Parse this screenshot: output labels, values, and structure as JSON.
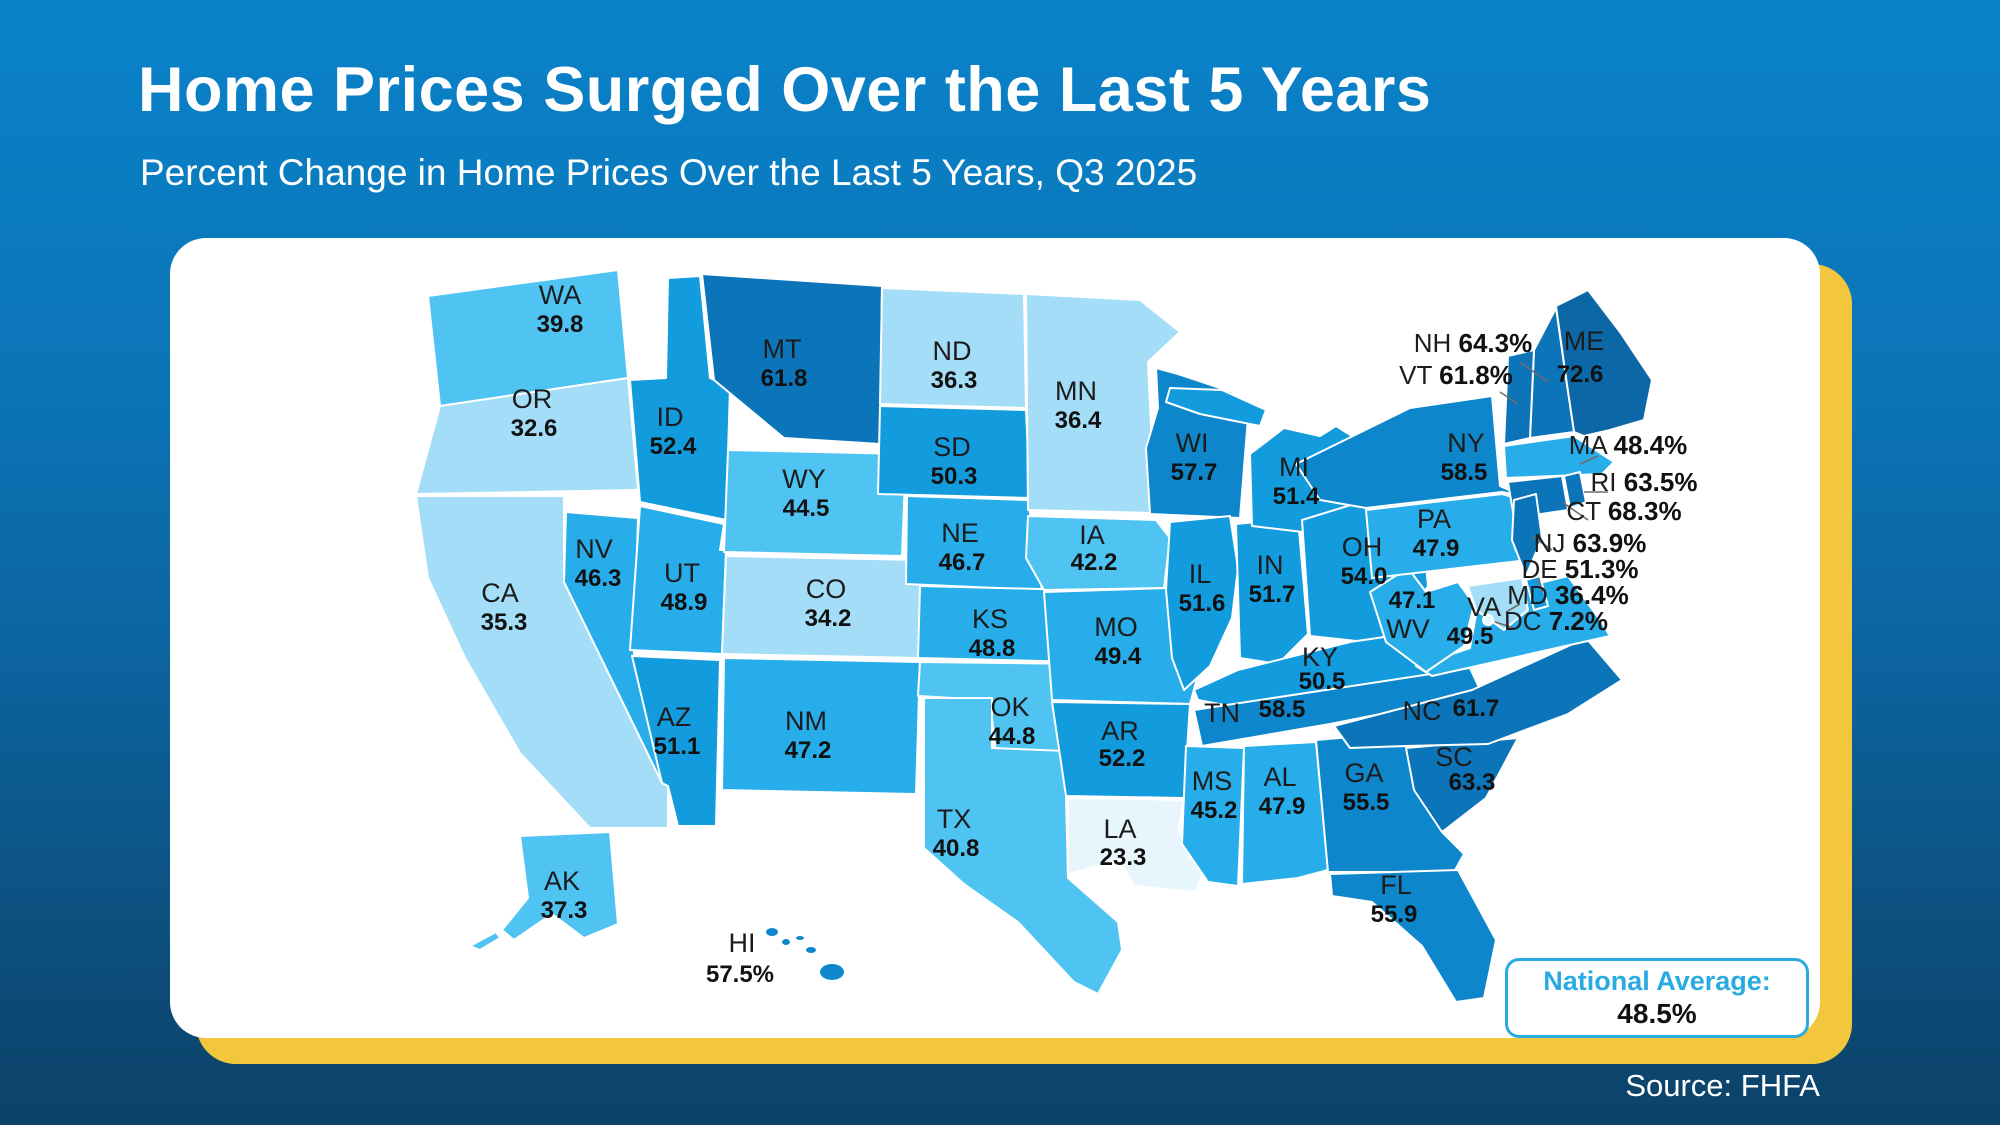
{
  "header": {
    "title": "Home Prices Surged Over the Last 5 Years",
    "subtitle": "Percent Change in Home Prices Over the Last 5 Years, Q3 2025"
  },
  "footer": {
    "source": "Source: FHFA"
  },
  "national_average": {
    "label": "National Average:",
    "value": "48.5%"
  },
  "colors": {
    "background_top": "#0a82c9",
    "background_bottom": "#0c4268",
    "accent_yellow": "#f2c63d",
    "callout_box_blue": "#29abe2",
    "scale_low_to_high": [
      "#e7f6fd",
      "#a3ddf8",
      "#4fc3f2",
      "#27ade9",
      "#129bdd",
      "#0e86cc",
      "#0c74b8",
      "#0b67a6"
    ]
  },
  "chart_data": {
    "type": "choropleth-map",
    "region": "United States",
    "title": "Home Prices Surged Over the Last 5 Years",
    "metric": "Percent change in home prices over the last 5 years, Q3 2025",
    "unit": "%",
    "national_average": 48.5,
    "source": "FHFA",
    "states": [
      {
        "code": "WA",
        "value": 39.8
      },
      {
        "code": "OR",
        "value": 32.6
      },
      {
        "code": "CA",
        "value": 35.3
      },
      {
        "code": "ID",
        "value": 52.4
      },
      {
        "code": "NV",
        "value": 46.3
      },
      {
        "code": "UT",
        "value": 48.9
      },
      {
        "code": "AZ",
        "value": 51.1
      },
      {
        "code": "MT",
        "value": 61.8
      },
      {
        "code": "WY",
        "value": 44.5
      },
      {
        "code": "CO",
        "value": 34.2
      },
      {
        "code": "NM",
        "value": 47.2
      },
      {
        "code": "ND",
        "value": 36.3
      },
      {
        "code": "SD",
        "value": 50.3
      },
      {
        "code": "NE",
        "value": 46.7
      },
      {
        "code": "KS",
        "value": 48.8
      },
      {
        "code": "OK",
        "value": 44.8
      },
      {
        "code": "TX",
        "value": 40.8
      },
      {
        "code": "MN",
        "value": 36.4
      },
      {
        "code": "IA",
        "value": 42.2
      },
      {
        "code": "MO",
        "value": 49.4
      },
      {
        "code": "AR",
        "value": 52.2
      },
      {
        "code": "LA",
        "value": 23.3
      },
      {
        "code": "WI",
        "value": 57.7
      },
      {
        "code": "IL",
        "value": 51.6
      },
      {
        "code": "IN",
        "value": 51.7
      },
      {
        "code": "MI",
        "value": 51.4
      },
      {
        "code": "OH",
        "value": 54.0
      },
      {
        "code": "KY",
        "value": 50.5
      },
      {
        "code": "TN",
        "value": 58.5
      },
      {
        "code": "MS",
        "value": 45.2
      },
      {
        "code": "AL",
        "value": 47.9
      },
      {
        "code": "GA",
        "value": 55.5
      },
      {
        "code": "FL",
        "value": 55.9
      },
      {
        "code": "SC",
        "value": 63.3
      },
      {
        "code": "NC",
        "value": 61.7
      },
      {
        "code": "VA",
        "value": 49.5
      },
      {
        "code": "WV",
        "value": 47.1
      },
      {
        "code": "PA",
        "value": 47.9
      },
      {
        "code": "NY",
        "value": 58.5
      },
      {
        "code": "ME",
        "value": 72.6
      },
      {
        "code": "AK",
        "value": 37.3
      },
      {
        "code": "HI",
        "value": 57.5,
        "pct": true
      },
      {
        "code": "NH",
        "value": 64.3,
        "pct": true,
        "callout": true
      },
      {
        "code": "VT",
        "value": 61.8,
        "pct": true,
        "callout": true
      },
      {
        "code": "MA",
        "value": 48.4,
        "pct": true,
        "callout": true
      },
      {
        "code": "RI",
        "value": 63.5,
        "pct": true,
        "callout": true
      },
      {
        "code": "CT",
        "value": 68.3,
        "pct": true,
        "callout": true
      },
      {
        "code": "NJ",
        "value": 63.9,
        "pct": true,
        "callout": true
      },
      {
        "code": "DE",
        "value": 51.3,
        "pct": true,
        "callout": true
      },
      {
        "code": "MD",
        "value": 36.4,
        "pct": true,
        "callout": true
      },
      {
        "code": "DC",
        "value": 7.2,
        "pct": true,
        "callout": true
      }
    ]
  }
}
